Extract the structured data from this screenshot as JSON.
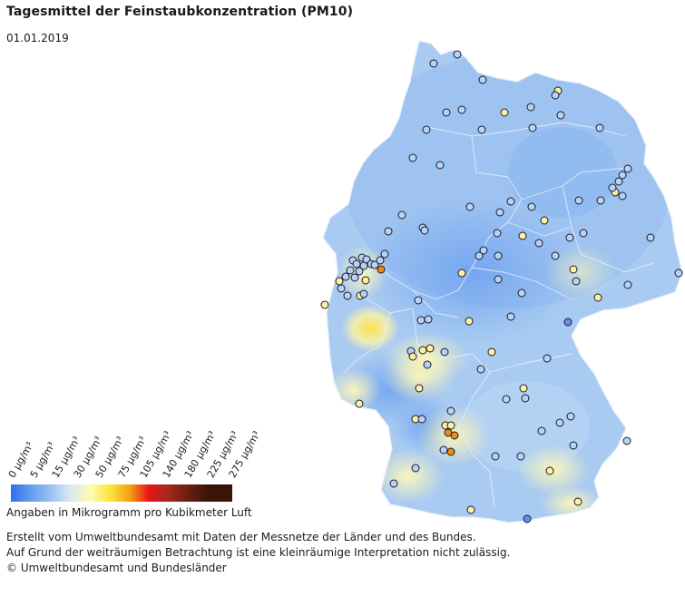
{
  "title": "Tagesmittel der Feinstaubkonzentration (PM10)",
  "date": "01.01.2019",
  "legend": {
    "labels": [
      "0 µg/m³",
      "5 µg/m³",
      "15 µg/m³",
      "30 µg/m³",
      "50 µg/m³",
      "75 µg/m³",
      "105 µg/m³",
      "140 µg/m³",
      "180 µg/m³",
      "225 µg/m³",
      "275 µg/m³"
    ],
    "colors": [
      "#2f6fe8",
      "#5a96ee",
      "#8fbaf2",
      "#d8e6f5",
      "#fefcb0",
      "#fbe33a",
      "#f49b12",
      "#e8141a",
      "#a8291c",
      "#6b2012",
      "#3a1408"
    ],
    "caption": "Angaben in Mikrogramm pro Kubikmeter Luft"
  },
  "footer": {
    "line1": "Erstellt vom Umweltbundesamt mit Daten der Messnetze der Länder und des Bundes.",
    "line2": "Auf Grund der weiträumigen Betrachtung ist eine kleinräumige Interpretation nicht zulässig.",
    "line3": "© Umweltbundesamt und Bundesländer"
  },
  "map": {
    "base_color": "#a9cbf2",
    "hotspot_color": "#fbe96a",
    "station_fill_low": "#b6d2f5",
    "station_fill_mid": "#fdf2a0",
    "station_fill_high": "#f08a10"
  }
}
